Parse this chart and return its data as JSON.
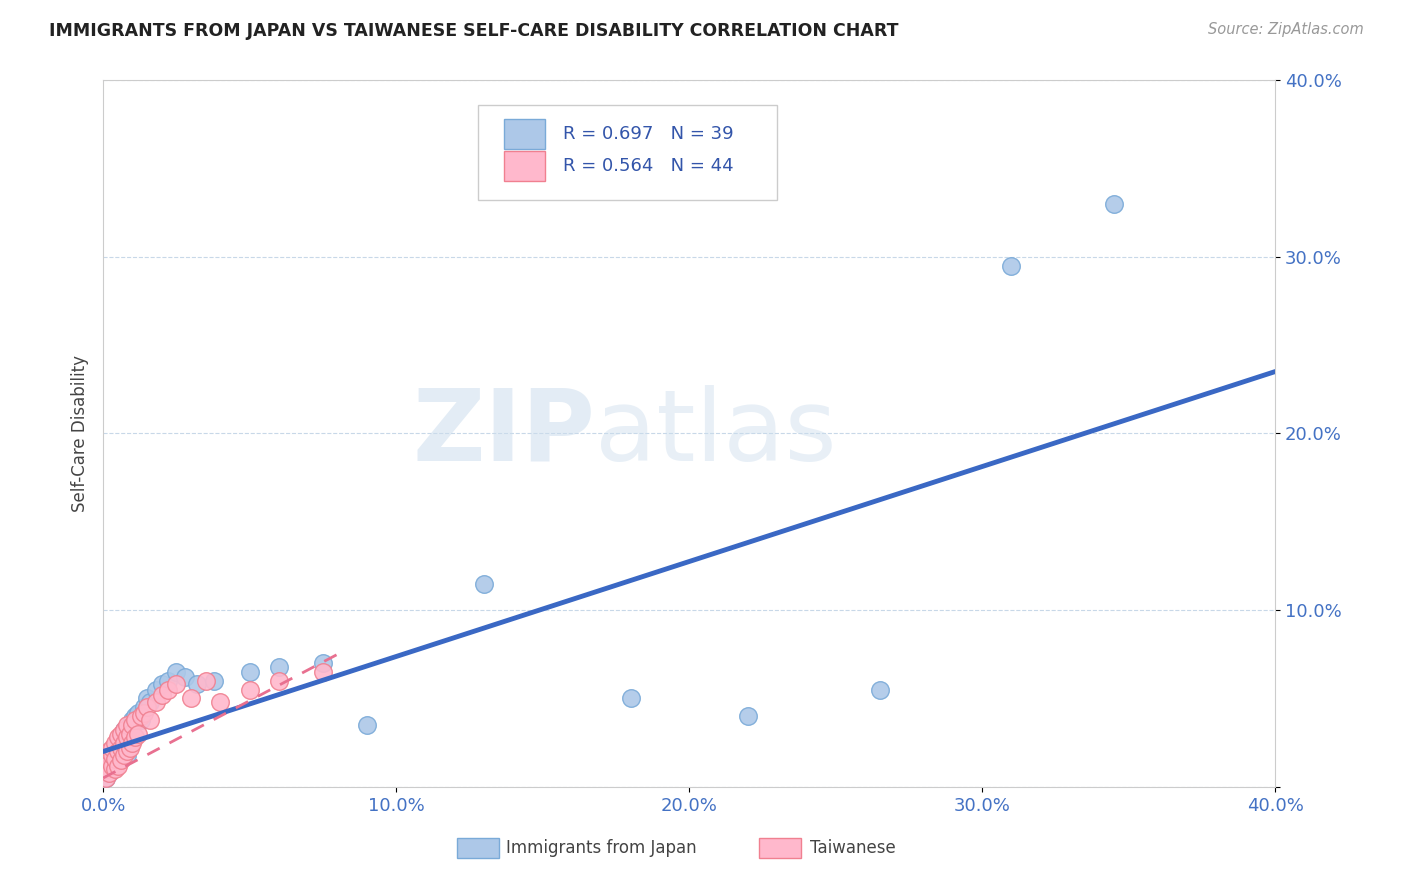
{
  "title": "IMMIGRANTS FROM JAPAN VS TAIWANESE SELF-CARE DISABILITY CORRELATION CHART",
  "source": "Source: ZipAtlas.com",
  "ylabel_label": "Self-Care Disability",
  "xlim": [
    0.0,
    0.4
  ],
  "ylim": [
    0.0,
    0.4
  ],
  "xticks": [
    0.0,
    0.1,
    0.2,
    0.3,
    0.4
  ],
  "yticks": [
    0.0,
    0.1,
    0.2,
    0.3,
    0.4
  ],
  "xtick_labels": [
    "0.0%",
    "10.0%",
    "20.0%",
    "30.0%",
    "40.0%"
  ],
  "ytick_labels": [
    "",
    "10.0%",
    "20.0%",
    "30.0%",
    "40.0%"
  ],
  "legend_R_blue": "R = 0.697",
  "legend_N_blue": "N = 39",
  "legend_R_pink": "R = 0.564",
  "legend_N_pink": "N = 44",
  "blue_scatter_x": [
    0.001,
    0.002,
    0.003,
    0.003,
    0.004,
    0.004,
    0.005,
    0.005,
    0.006,
    0.006,
    0.007,
    0.007,
    0.008,
    0.008,
    0.009,
    0.01,
    0.011,
    0.012,
    0.013,
    0.014,
    0.015,
    0.016,
    0.018,
    0.02,
    0.022,
    0.025,
    0.028,
    0.032,
    0.038,
    0.05,
    0.06,
    0.075,
    0.09,
    0.13,
    0.18,
    0.22,
    0.265,
    0.31,
    0.345
  ],
  "blue_scatter_y": [
    0.005,
    0.008,
    0.01,
    0.012,
    0.015,
    0.018,
    0.02,
    0.022,
    0.025,
    0.028,
    0.03,
    0.032,
    0.018,
    0.025,
    0.035,
    0.038,
    0.04,
    0.042,
    0.038,
    0.045,
    0.05,
    0.048,
    0.055,
    0.058,
    0.06,
    0.065,
    0.062,
    0.058,
    0.06,
    0.065,
    0.068,
    0.07,
    0.035,
    0.115,
    0.05,
    0.04,
    0.055,
    0.295,
    0.33
  ],
  "pink_scatter_x": [
    0.001,
    0.001,
    0.002,
    0.002,
    0.002,
    0.003,
    0.003,
    0.003,
    0.004,
    0.004,
    0.004,
    0.005,
    0.005,
    0.005,
    0.006,
    0.006,
    0.006,
    0.007,
    0.007,
    0.007,
    0.008,
    0.008,
    0.008,
    0.009,
    0.009,
    0.01,
    0.01,
    0.011,
    0.011,
    0.012,
    0.013,
    0.014,
    0.015,
    0.016,
    0.018,
    0.02,
    0.022,
    0.025,
    0.03,
    0.035,
    0.04,
    0.05,
    0.06,
    0.075
  ],
  "pink_scatter_y": [
    0.005,
    0.01,
    0.008,
    0.015,
    0.02,
    0.012,
    0.018,
    0.022,
    0.01,
    0.016,
    0.025,
    0.012,
    0.02,
    0.028,
    0.015,
    0.022,
    0.03,
    0.018,
    0.025,
    0.032,
    0.02,
    0.028,
    0.035,
    0.022,
    0.03,
    0.025,
    0.035,
    0.028,
    0.038,
    0.03,
    0.04,
    0.042,
    0.045,
    0.038,
    0.048,
    0.052,
    0.055,
    0.058,
    0.05,
    0.06,
    0.048,
    0.055,
    0.06,
    0.065
  ],
  "blue_line_x0": 0.0,
  "blue_line_y0": 0.02,
  "blue_line_x1": 0.4,
  "blue_line_y1": 0.235,
  "pink_line_x0": 0.0,
  "pink_line_y0": 0.005,
  "pink_line_x1": 0.08,
  "pink_line_y1": 0.075,
  "blue_line_color": "#3a68c4",
  "pink_line_color": "#e87090",
  "blue_scatter_facecolor": "#adc8e8",
  "blue_scatter_edgecolor": "#7aaad8",
  "pink_scatter_facecolor": "#ffb8cc",
  "pink_scatter_edgecolor": "#f08090",
  "watermark_zip": "ZIP",
  "watermark_atlas": "atlas",
  "background_color": "#ffffff",
  "dashed_grid_color": "#c8d8e8",
  "title_color": "#222222",
  "tick_label_color": "#4472c4",
  "ylabel_color": "#444444",
  "legend_text_color": "#3355aa",
  "legend_edge_color": "#cccccc"
}
